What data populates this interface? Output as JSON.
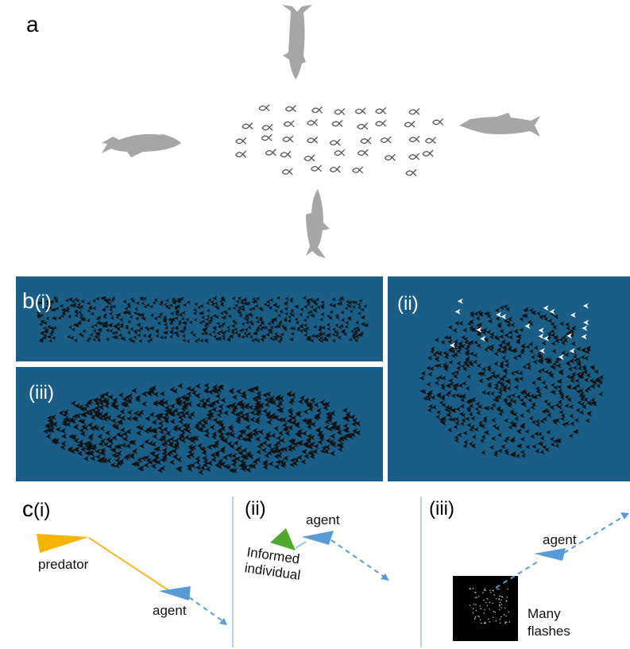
{
  "panel_a": {
    "label": "a"
  },
  "panel_b": {
    "label": "b",
    "sub_i": "(i)",
    "sub_ii": "(ii)",
    "sub_iii": "(iii)"
  },
  "panel_c": {
    "label": "c",
    "sub_i": {
      "label": "(i)",
      "predator": "predator",
      "agent": "agent"
    },
    "sub_ii": {
      "label": "(ii)",
      "agent": "agent",
      "informed": [
        "Informed",
        "individual"
      ]
    },
    "sub_iii": {
      "label": "(iii)",
      "agent": "agent",
      "flashes": [
        "Many",
        "flashes"
      ]
    }
  }
}
